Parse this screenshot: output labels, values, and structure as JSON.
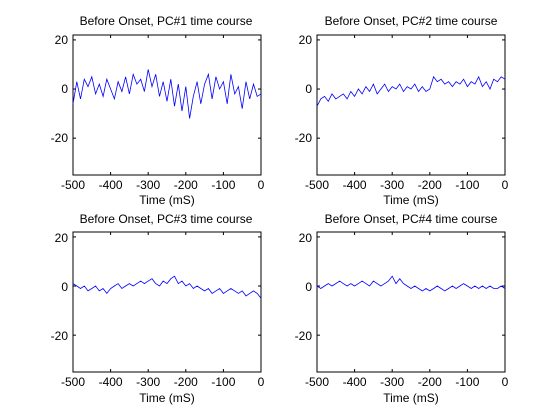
{
  "chart_data": [
    {
      "type": "line",
      "title": "Before Onset, PC#1 time course",
      "xlabel": "Time (mS)",
      "ylabel": "",
      "xlim": [
        -500,
        0
      ],
      "ylim": [
        -35,
        22
      ],
      "xticks": [
        -500,
        -400,
        -300,
        -200,
        -100,
        0
      ],
      "yticks": [
        20,
        0,
        -20
      ],
      "color": "#0000ff",
      "series": [
        {
          "x": [
            -500,
            -490,
            -480,
            -470,
            -460,
            -450,
            -440,
            -430,
            -420,
            -410,
            -400,
            -390,
            -380,
            -370,
            -360,
            -350,
            -340,
            -330,
            -320,
            -310,
            -300,
            -290,
            -280,
            -270,
            -260,
            -250,
            -240,
            -230,
            -220,
            -210,
            -200,
            -190,
            -180,
            -170,
            -160,
            -150,
            -140,
            -130,
            -120,
            -110,
            -100,
            -90,
            -80,
            -70,
            -60,
            -50,
            -40,
            -30,
            -20,
            -10,
            0
          ],
          "y": [
            -6,
            3,
            -4,
            4,
            1,
            5,
            -2,
            2,
            -3,
            4,
            0,
            -4,
            3,
            -1,
            5,
            -2,
            6,
            2,
            4,
            -1,
            8,
            1,
            6,
            -3,
            3,
            -5,
            4,
            -7,
            2,
            -9,
            1,
            -12,
            -3,
            3,
            -6,
            2,
            6,
            -4,
            5,
            0,
            3,
            -6,
            6,
            -2,
            1,
            -8,
            3,
            -4,
            2,
            -3,
            -2
          ]
        }
      ]
    },
    {
      "type": "line",
      "title": "Before Onset, PC#2 time course",
      "xlabel": "Time (mS)",
      "ylabel": "",
      "xlim": [
        -500,
        0
      ],
      "ylim": [
        -35,
        22
      ],
      "xticks": [
        -500,
        -400,
        -300,
        -200,
        -100,
        0
      ],
      "yticks": [
        20,
        0,
        -20
      ],
      "color": "#0000ff",
      "series": [
        {
          "x": [
            -500,
            -490,
            -480,
            -470,
            -460,
            -450,
            -440,
            -430,
            -420,
            -410,
            -400,
            -390,
            -380,
            -370,
            -360,
            -350,
            -340,
            -330,
            -320,
            -310,
            -300,
            -290,
            -280,
            -270,
            -260,
            -250,
            -240,
            -230,
            -220,
            -210,
            -200,
            -190,
            -180,
            -170,
            -160,
            -150,
            -140,
            -130,
            -120,
            -110,
            -100,
            -90,
            -80,
            -70,
            -60,
            -50,
            -40,
            -30,
            -20,
            -10,
            0
          ],
          "y": [
            -7,
            -4,
            -3,
            -5,
            -2,
            -4,
            -3,
            -2,
            -4,
            -1,
            -3,
            0,
            -2,
            1,
            -1,
            2,
            -2,
            0,
            2,
            -1,
            1,
            0,
            2,
            -1,
            1,
            0,
            2,
            -1,
            1,
            -1,
            0,
            5,
            3,
            4,
            2,
            3,
            1,
            3,
            2,
            4,
            1,
            3,
            2,
            5,
            1,
            3,
            0,
            4,
            3,
            5,
            4
          ]
        }
      ]
    },
    {
      "type": "line",
      "title": "Before Onset, PC#3 time course",
      "xlabel": "Time (mS)",
      "ylabel": "",
      "xlim": [
        -500,
        0
      ],
      "ylim": [
        -35,
        22
      ],
      "xticks": [
        -500,
        -400,
        -300,
        -200,
        -100,
        0
      ],
      "yticks": [
        20,
        0,
        -20
      ],
      "color": "#0000ff",
      "series": [
        {
          "x": [
            -500,
            -490,
            -480,
            -470,
            -460,
            -450,
            -440,
            -430,
            -420,
            -410,
            -400,
            -390,
            -380,
            -370,
            -360,
            -350,
            -340,
            -330,
            -320,
            -310,
            -300,
            -290,
            -280,
            -270,
            -260,
            -250,
            -240,
            -230,
            -220,
            -210,
            -200,
            -190,
            -180,
            -170,
            -160,
            -150,
            -140,
            -130,
            -120,
            -110,
            -100,
            -90,
            -80,
            -70,
            -60,
            -50,
            -40,
            -30,
            -20,
            -10,
            0
          ],
          "y": [
            1,
            0,
            -1,
            0,
            -2,
            -1,
            0,
            -2,
            -1,
            -3,
            -1,
            0,
            1,
            -1,
            0,
            1,
            0,
            1,
            2,
            1,
            2,
            3,
            1,
            0,
            2,
            1,
            3,
            4,
            1,
            2,
            0,
            1,
            -1,
            0,
            -1,
            -2,
            -1,
            -3,
            -2,
            -1,
            -3,
            -2,
            -1,
            -2,
            -3,
            -2,
            -4,
            -3,
            -2,
            -3,
            -5
          ]
        }
      ]
    },
    {
      "type": "line",
      "title": "Before Onset, PC#4 time course",
      "xlabel": "Time (mS)",
      "ylabel": "",
      "xlim": [
        -500,
        0
      ],
      "ylim": [
        -35,
        22
      ],
      "xticks": [
        -500,
        -400,
        -300,
        -200,
        -100,
        0
      ],
      "yticks": [
        20,
        0,
        -20
      ],
      "color": "#0000ff",
      "series": [
        {
          "x": [
            -500,
            -490,
            -480,
            -470,
            -460,
            -450,
            -440,
            -430,
            -420,
            -410,
            -400,
            -390,
            -380,
            -370,
            -360,
            -350,
            -340,
            -330,
            -320,
            -310,
            -300,
            -290,
            -280,
            -270,
            -260,
            -250,
            -240,
            -230,
            -220,
            -210,
            -200,
            -190,
            -180,
            -170,
            -160,
            -150,
            -140,
            -130,
            -120,
            -110,
            -100,
            -90,
            -80,
            -70,
            -60,
            -50,
            -40,
            -30,
            -20,
            -10,
            0
          ],
          "y": [
            0,
            -1,
            0,
            1,
            0,
            1,
            2,
            1,
            0,
            1,
            0,
            1,
            2,
            1,
            0,
            2,
            1,
            0,
            1,
            2,
            4,
            1,
            3,
            1,
            0,
            -1,
            0,
            -1,
            -2,
            -1,
            -2,
            -1,
            0,
            -1,
            -2,
            -1,
            0,
            -1,
            0,
            1,
            0,
            -1,
            0,
            -1,
            0,
            -1,
            0,
            -1,
            -1,
            0,
            -1
          ]
        }
      ]
    }
  ]
}
